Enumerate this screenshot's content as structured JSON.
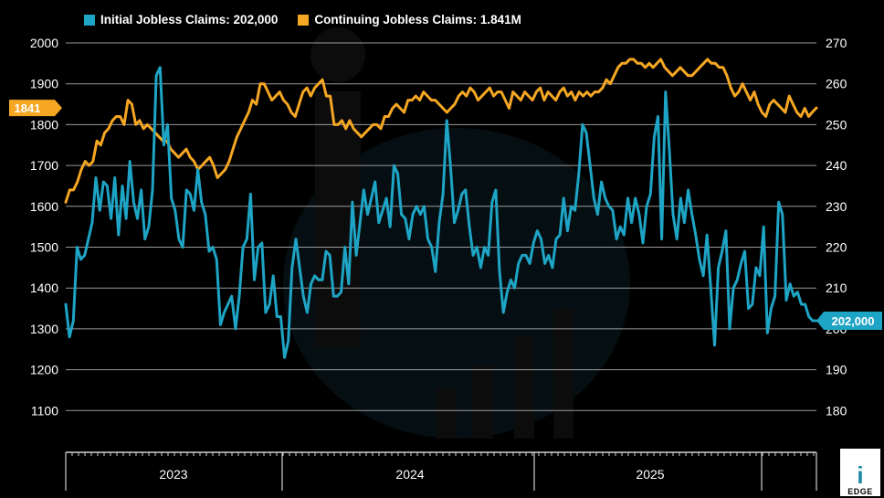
{
  "chart_data": {
    "type": "line",
    "legend": {
      "initial": "Initial Jobless Claims: 202,000",
      "continuing": "Continuing Jobless Claims: 1.841M"
    },
    "colors": {
      "initial": "#1ea4c4",
      "continuing": "#f5a623",
      "background": "#000000",
      "grid": "#bfbfbf"
    },
    "left_axis": {
      "ticks": [
        "2000",
        "1900",
        "1800",
        "1700",
        "1600",
        "1500",
        "1400",
        "1300",
        "1200",
        "1100"
      ],
      "ylim": [
        1000,
        2000
      ]
    },
    "right_axis": {
      "ticks": [
        "270",
        "260",
        "250",
        "240",
        "230",
        "220",
        "210",
        "200",
        "190",
        "180"
      ],
      "ylim": [
        170,
        270
      ]
    },
    "x_labels": [
      "2023",
      "2024",
      "2025"
    ],
    "tags": {
      "continuing_last": "1841",
      "initial_last": "202,000"
    },
    "series": [
      {
        "name": "Initial Jobless Claims",
        "axis": "right",
        "values": [
          206,
          198,
          202,
          220,
          217,
          218,
          222,
          226,
          237,
          229,
          236,
          235,
          227,
          237,
          223,
          235,
          227,
          241,
          231,
          227,
          234,
          222,
          225,
          234,
          262,
          264,
          245,
          250,
          232,
          229,
          222,
          220,
          234,
          233,
          229,
          239,
          231,
          228,
          219,
          220,
          217,
          201,
          204,
          206,
          208,
          200,
          208,
          220,
          222,
          233,
          212,
          220,
          221,
          204,
          206,
          213,
          203,
          203,
          193,
          197,
          215,
          222,
          215,
          208,
          204,
          211,
          213,
          212,
          212,
          219,
          218,
          208,
          208,
          209,
          220,
          211,
          231,
          218,
          226,
          234,
          228,
          232,
          236,
          226,
          229,
          232,
          225,
          240,
          238,
          228,
          227,
          222,
          228,
          230,
          228,
          230,
          222,
          220,
          214,
          226,
          233,
          251,
          240,
          226,
          229,
          233,
          234,
          225,
          218,
          220,
          215,
          220,
          218,
          231,
          234,
          214,
          204,
          209,
          212,
          210,
          216,
          218,
          218,
          216,
          221,
          224,
          222,
          216,
          218,
          215,
          222,
          223,
          232,
          224,
          230,
          229,
          238,
          250,
          248,
          240,
          232,
          228,
          236,
          232,
          230,
          229,
          222,
          225,
          223,
          232,
          226,
          232,
          228,
          221,
          230,
          233,
          247,
          252,
          222,
          258,
          244,
          228,
          222,
          232,
          226,
          234,
          228,
          223,
          217,
          213,
          223,
          210,
          196,
          215,
          219,
          224,
          200,
          210,
          212,
          216,
          219,
          205,
          206,
          215,
          213,
          225,
          199,
          205,
          208,
          231,
          228,
          207,
          211,
          208,
          209,
          206,
          206,
          203,
          202,
          202
        ],
        "last_label": "202,000"
      },
      {
        "name": "Continuing Jobless Claims",
        "axis": "left",
        "values": [
          1610,
          1640,
          1640,
          1660,
          1690,
          1710,
          1700,
          1710,
          1760,
          1750,
          1780,
          1790,
          1810,
          1820,
          1820,
          1800,
          1860,
          1850,
          1800,
          1810,
          1790,
          1800,
          1790,
          1780,
          1770,
          1760,
          1760,
          1740,
          1730,
          1720,
          1730,
          1740,
          1720,
          1710,
          1690,
          1700,
          1710,
          1720,
          1700,
          1670,
          1680,
          1690,
          1710,
          1740,
          1770,
          1790,
          1810,
          1830,
          1860,
          1850,
          1900,
          1900,
          1880,
          1860,
          1870,
          1880,
          1860,
          1850,
          1830,
          1820,
          1850,
          1880,
          1890,
          1870,
          1890,
          1900,
          1910,
          1870,
          1870,
          1800,
          1800,
          1810,
          1790,
          1810,
          1790,
          1780,
          1770,
          1780,
          1790,
          1800,
          1800,
          1790,
          1820,
          1820,
          1840,
          1850,
          1840,
          1830,
          1860,
          1860,
          1870,
          1860,
          1880,
          1870,
          1860,
          1860,
          1850,
          1840,
          1830,
          1840,
          1850,
          1870,
          1880,
          1870,
          1890,
          1880,
          1860,
          1870,
          1880,
          1890,
          1870,
          1880,
          1880,
          1860,
          1840,
          1880,
          1870,
          1860,
          1880,
          1870,
          1860,
          1880,
          1890,
          1860,
          1880,
          1870,
          1860,
          1880,
          1890,
          1870,
          1880,
          1860,
          1880,
          1870,
          1880,
          1870,
          1880,
          1880,
          1890,
          1910,
          1900,
          1920,
          1940,
          1950,
          1950,
          1960,
          1960,
          1950,
          1950,
          1940,
          1950,
          1940,
          1950,
          1960,
          1940,
          1930,
          1920,
          1930,
          1940,
          1930,
          1920,
          1920,
          1930,
          1940,
          1950,
          1960,
          1950,
          1950,
          1940,
          1940,
          1920,
          1890,
          1870,
          1880,
          1900,
          1880,
          1860,
          1880,
          1850,
          1830,
          1820,
          1850,
          1860,
          1850,
          1840,
          1830,
          1870,
          1850,
          1830,
          1820,
          1840,
          1820,
          1831,
          1841
        ]
      }
    ]
  },
  "brand": {
    "name": "EDGE",
    "mark": "i"
  }
}
